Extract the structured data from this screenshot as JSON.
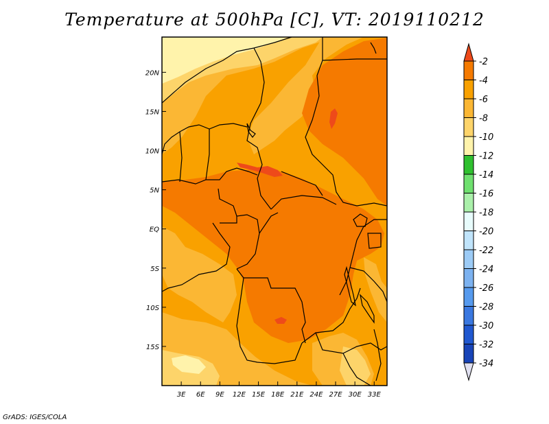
{
  "title": "Temperature at 500hPa [C], VT: 2019110212",
  "credit": "GrADS: IGES/COLA",
  "map": {
    "lon_ticks": [
      "3E",
      "6E",
      "9E",
      "12E",
      "15E",
      "18E",
      "21E",
      "24E",
      "27E",
      "30E",
      "33E"
    ],
    "lat_ticks": [
      "20N",
      "15N",
      "10N",
      "5N",
      "EQ",
      "5S",
      "10S",
      "15S"
    ],
    "lon_range": [
      0,
      35
    ],
    "lat_range": [
      -20,
      24.5
    ]
  },
  "colorbar": {
    "labels": [
      "-2",
      "-4",
      "-6",
      "-8",
      "-10",
      "-12",
      "-14",
      "-16",
      "-18",
      "-20",
      "-22",
      "-24",
      "-26",
      "-28",
      "-30",
      "-32",
      "-34"
    ],
    "colors": [
      "#ee4a1a",
      "#f57a00",
      "#f9a100",
      "#fbb734",
      "#fdd46a",
      "#fff3ab",
      "#2fc02f",
      "#6fe06f",
      "#aaf0aa",
      "#e8fcfc",
      "#c0e4fb",
      "#9ccbf6",
      "#7cb2f0",
      "#569aee",
      "#3a78e0",
      "#2058d0",
      "#1844b8",
      "#0a1a7a",
      "#e0e0f0"
    ]
  }
}
